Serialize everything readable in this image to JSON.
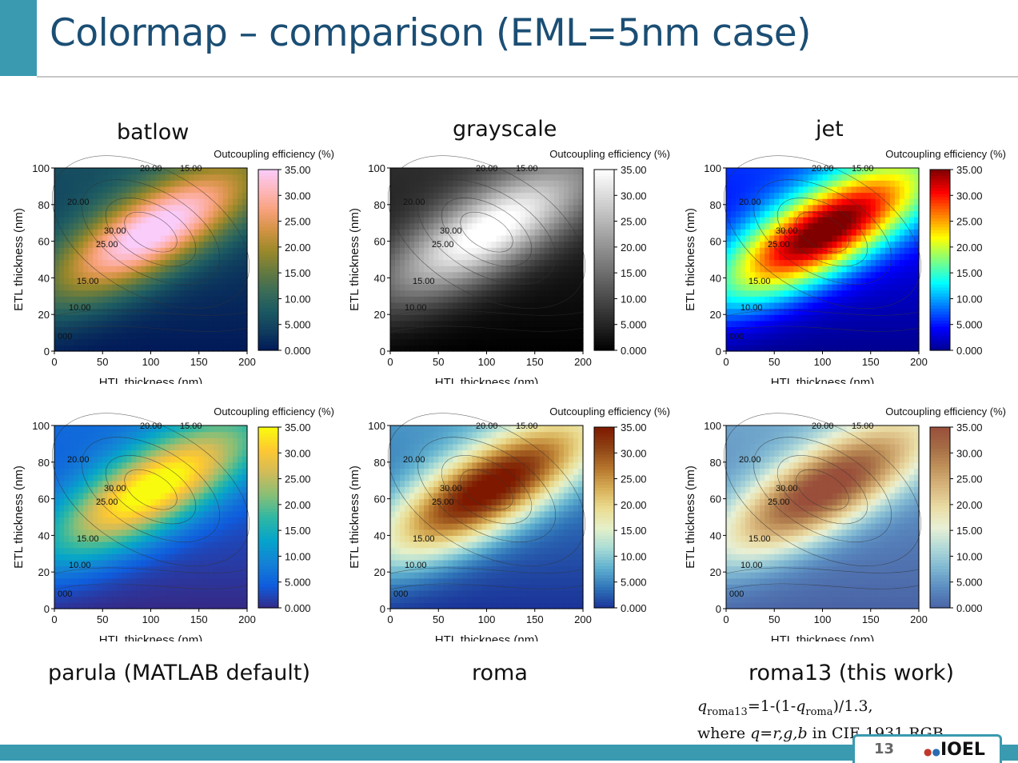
{
  "slide": {
    "title": "Colormap – comparison (EML=5nm case)",
    "page_number": "13",
    "logo_text": "IOEL"
  },
  "note": {
    "q": "q",
    "sub_roma13": "roma13",
    "eq1": "=1-(1-",
    "sub_roma": "roma",
    "eq2": ")/1.3,",
    "where": "where ",
    "q2": "q",
    "eq3": "=",
    "rgb": "r,g,b",
    "in_text": " in CIE 1931 RGB"
  },
  "colorbar_ticks": [
    "35.00",
    "30.00",
    "25.00",
    "20.00",
    "15.00",
    "10.00",
    "5.000",
    "0.000"
  ],
  "chart_data": [
    {
      "type": "heatmap",
      "name": "batlow",
      "colors": [
        "#011959",
        "#0f3d5e",
        "#1c5a62",
        "#3c6d56",
        "#687b3e",
        "#9d892a",
        "#d29343",
        "#f8a17b",
        "#fdb7bc",
        "#faccfa"
      ],
      "title": "Outcoupling efficiency (%)",
      "xlabel": "HTL thickness (nm)",
      "ylabel": "ETL thickness (nm)",
      "xlim": [
        0,
        200
      ],
      "ylim": [
        0,
        100
      ],
      "zlim": [
        0,
        35
      ],
      "xticks": [
        "0",
        "50",
        "100",
        "150",
        "200"
      ],
      "yticks": [
        "0",
        "20",
        "40",
        "60",
        "80",
        "100"
      ],
      "contour_labels": [
        "20.00",
        "15.00",
        "20.00",
        "30.00",
        "25.00",
        "15.00",
        "10.00",
        "000"
      ],
      "peak": {
        "htl": 100,
        "etl": 65,
        "value": 33
      }
    },
    {
      "type": "heatmap",
      "name": "grayscale",
      "colors": [
        "#000000",
        "#ffffff"
      ],
      "title": "Outcoupling efficiency (%)",
      "xlabel": "HTL thickness (nm)",
      "ylabel": "ETL thickness (nm)",
      "xlim": [
        0,
        200
      ],
      "ylim": [
        0,
        100
      ],
      "zlim": [
        0,
        35
      ],
      "xticks": [
        "0",
        "50",
        "100",
        "150",
        "200"
      ],
      "yticks": [
        "0",
        "20",
        "40",
        "60",
        "80",
        "100"
      ],
      "contour_labels": [
        "20.00",
        "15.00",
        "20.00",
        "30.00",
        "25.00",
        "15.00",
        "10.00",
        "000"
      ],
      "peak": {
        "htl": 100,
        "etl": 65,
        "value": 33
      }
    },
    {
      "type": "heatmap",
      "name": "jet",
      "colors": [
        "#00008f",
        "#0000ff",
        "#0080ff",
        "#00ffff",
        "#80ff80",
        "#ffff00",
        "#ff8000",
        "#ff0000",
        "#800000"
      ],
      "title": "Outcoupling efficiency (%)",
      "xlabel": "HTL thickness (nm)",
      "ylabel": "ETL thickness (nm)",
      "xlim": [
        0,
        200
      ],
      "ylim": [
        0,
        100
      ],
      "zlim": [
        0,
        35
      ],
      "xticks": [
        "0",
        "50",
        "100",
        "150",
        "200"
      ],
      "yticks": [
        "0",
        "20",
        "40",
        "60",
        "80",
        "100"
      ],
      "contour_labels": [
        "20.00",
        "15.00",
        "20.00",
        "30.00",
        "25.00",
        "15.00",
        "10.00",
        "000"
      ],
      "peak": {
        "htl": 100,
        "etl": 65,
        "value": 33
      }
    },
    {
      "type": "heatmap",
      "name": "parula (MATLAB default)",
      "colors": [
        "#352a87",
        "#0f5cdd",
        "#1481d6",
        "#06a4ca",
        "#2eb7a4",
        "#87bf77",
        "#d1bb59",
        "#fec832",
        "#f9fb0e"
      ],
      "title": "Outcoupling efficiency (%)",
      "xlabel": "HTL thickness (nm)",
      "ylabel": "ETL thickness (nm)",
      "xlim": [
        0,
        200
      ],
      "ylim": [
        0,
        100
      ],
      "zlim": [
        0,
        35
      ],
      "xticks": [
        "0",
        "50",
        "100",
        "150",
        "200"
      ],
      "yticks": [
        "0",
        "20",
        "40",
        "60",
        "80",
        "100"
      ],
      "contour_labels": [
        "20.00",
        "15.00",
        "20.00",
        "30.00",
        "25.00",
        "15.00",
        "10.00",
        "000"
      ],
      "peak": {
        "htl": 100,
        "etl": 65,
        "value": 33
      }
    },
    {
      "type": "heatmap",
      "name": "roma",
      "colors": [
        "#1a3399",
        "#2f73b8",
        "#5fb0cf",
        "#a9dcd6",
        "#e6f0c8",
        "#eadb8f",
        "#d6ac55",
        "#b4742c",
        "#8e4214",
        "#7e1900"
      ],
      "title": "Outcoupling efficiency (%)",
      "xlabel": "HTL thickness (nm)",
      "ylabel": "ETL thickness (nm)",
      "xlim": [
        0,
        200
      ],
      "ylim": [
        0,
        100
      ],
      "zlim": [
        0,
        35
      ],
      "xticks": [
        "0",
        "50",
        "100",
        "150",
        "200"
      ],
      "yticks": [
        "0",
        "20",
        "40",
        "60",
        "80",
        "100"
      ],
      "contour_labels": [
        "20.00",
        "15.00",
        "20.00",
        "30.00",
        "25.00",
        "15.00",
        "10.00",
        "000"
      ],
      "peak": {
        "htl": 100,
        "etl": 65,
        "value": 33
      }
    },
    {
      "type": "heatmap",
      "name": "roma13 (this work)",
      "colors": [
        "#4a64a6",
        "#5a8bc0",
        "#7fb7d2",
        "#b1d9d8",
        "#e8f0d5",
        "#eadda6",
        "#d9b87f",
        "#c0935b",
        "#a56c45",
        "#9a4f3b"
      ],
      "title": "Outcoupling efficiency (%)",
      "xlabel": "HTL thickness (nm)",
      "ylabel": "ETL thickness (nm)",
      "xlim": [
        0,
        200
      ],
      "ylim": [
        0,
        100
      ],
      "zlim": [
        0,
        35
      ],
      "xticks": [
        "0",
        "50",
        "100",
        "150",
        "200"
      ],
      "yticks": [
        "0",
        "20",
        "40",
        "60",
        "80",
        "100"
      ],
      "contour_labels": [
        "20.00",
        "15.00",
        "20.00",
        "30.00",
        "25.00",
        "15.00",
        "10.00",
        "000"
      ],
      "peak": {
        "htl": 100,
        "etl": 65,
        "value": 33
      }
    }
  ]
}
